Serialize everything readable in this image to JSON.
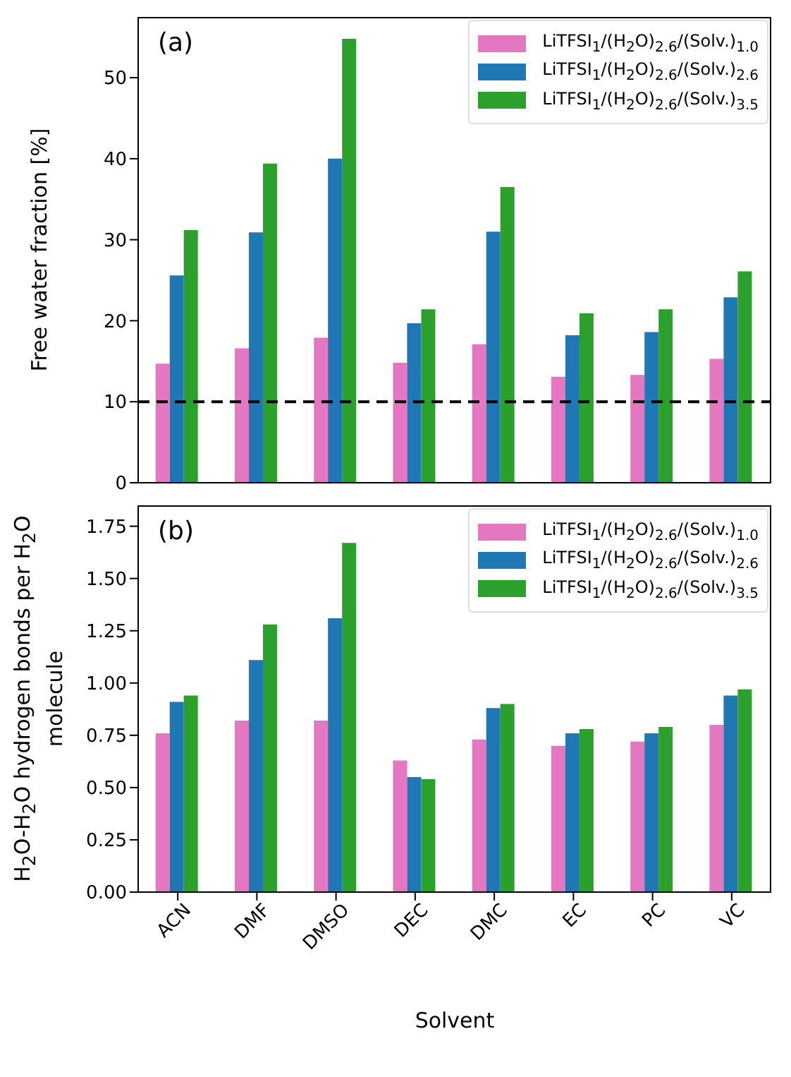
{
  "chart_data": [
    {
      "type": "bar",
      "ylabel": "Free water fraction [%]",
      "annotations": [
        "(a)"
      ],
      "series": [
        {
          "name": "LiTFSI$_{1}$/(H$_{2}$O)$_{2.6}$/(Solv.)$_{1.0}$",
          "color": "#e377c2",
          "values": [
            14.7,
            16.6,
            17.9,
            14.8,
            17.1,
            13.1,
            13.3,
            15.3
          ]
        },
        {
          "name": "LiTFSI$_{1}$/(H$_{2}$O)$_{2.6}$/(Solv.)$_{2.6}$",
          "color": "#1f77b4",
          "values": [
            25.6,
            30.9,
            40.0,
            19.7,
            31.0,
            18.2,
            18.6,
            22.9
          ]
        },
        {
          "name": "LiTFSI$_{1}$/(H$_{2}$O)$_{2.6}$/(Solv.)$_{3.5}$",
          "color": "#2ca02c",
          "values": [
            31.2,
            39.4,
            54.8,
            21.4,
            36.5,
            20.9,
            21.4,
            26.1
          ]
        }
      ],
      "ylim": [
        0,
        57.5
      ],
      "yticks": [
        0,
        10,
        20,
        30,
        40,
        50
      ],
      "ref_lines": [
        {
          "axis": "y",
          "value": 10,
          "color": "#000000",
          "line_style": "dashed"
        }
      ],
      "legend": "top right",
      "grid": false,
      "tick_labels": "y"
    },
    {
      "type": "bar",
      "xlabel": "Solvent",
      "ylabel": "H$_{2}$O-H$_{2}$O hydrogen bonds per H$_{2}$O molecule",
      "annotations": [
        "(b)"
      ],
      "categories": [
        "ACN",
        "DMF",
        "DMSO",
        "DEC",
        "DMC",
        "EC",
        "PC",
        "VC"
      ],
      "series": [
        {
          "name": "LiTFSI$_{1}$/(H$_{2}$O)$_{2.6}$/(Solv.)$_{1.0}$",
          "color": "#e377c2",
          "values": [
            0.76,
            0.82,
            0.82,
            0.63,
            0.73,
            0.7,
            0.72,
            0.8
          ]
        },
        {
          "name": "LiTFSI$_{1}$/(H$_{2}$O)$_{2.6}$/(Solv.)$_{2.6}$",
          "color": "#1f77b4",
          "values": [
            0.91,
            1.11,
            1.31,
            0.55,
            0.88,
            0.76,
            0.76,
            0.94
          ]
        },
        {
          "name": "LiTFSI$_{1}$/(H$_{2}$O)$_{2.6}$/(Solv.)$_{3.5}$",
          "color": "#2ca02c",
          "values": [
            0.94,
            1.28,
            1.67,
            0.54,
            0.9,
            0.78,
            0.79,
            0.97
          ]
        }
      ],
      "ylim": [
        0,
        1.85
      ],
      "yticks": [
        {
          "value": 0,
          "label": "0.00"
        },
        {
          "value": 0.25,
          "label": "0.25"
        },
        {
          "value": 0.5,
          "label": "0.50"
        },
        {
          "value": 0.75,
          "label": "0.75"
        },
        {
          "value": 1,
          "label": "1.00"
        },
        {
          "value": 1.25,
          "label": "1.25"
        },
        {
          "value": 1.5,
          "label": "1.50"
        },
        {
          "value": 1.75,
          "label": "1.75"
        }
      ],
      "legend": "top right",
      "grid": false
    }
  ]
}
